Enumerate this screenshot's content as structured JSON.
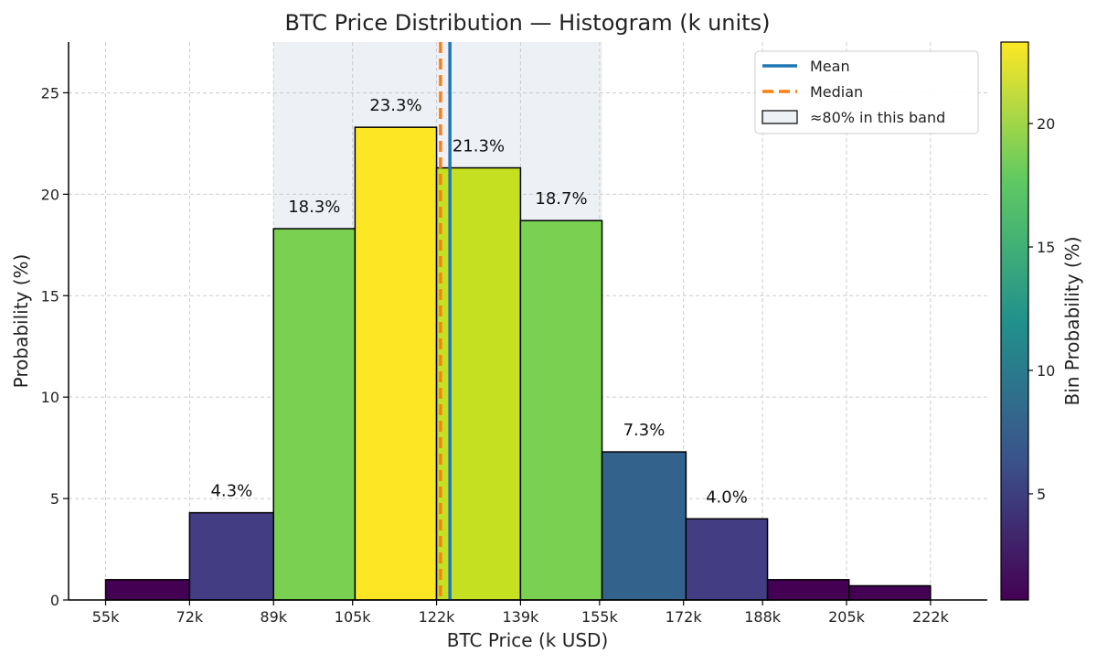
{
  "chart_data": {
    "type": "bar",
    "title": "BTC Price Distribution — Histogram (k units)",
    "xlabel": "BTC Price (k USD)",
    "ylabel": "Probability (%)",
    "ylim": [
      0,
      27.5
    ],
    "yticks": [
      0,
      5,
      10,
      15,
      20,
      25
    ],
    "xlim": [
      47.5,
      233.5
    ],
    "xticks": [
      55,
      72,
      89,
      105,
      122,
      139,
      155,
      172,
      188,
      205,
      222
    ],
    "xtick_labels": [
      "55k",
      "72k",
      "89k",
      "105k",
      "122k",
      "139k",
      "155k",
      "172k",
      "188k",
      "205k",
      "222k"
    ],
    "grid": true,
    "bin_edges": [
      55,
      72,
      89,
      105.5,
      122,
      139,
      155.5,
      172.5,
      189,
      205.5,
      222
    ],
    "values": [
      1.0,
      4.3,
      18.3,
      23.3,
      21.3,
      18.7,
      7.3,
      4.0,
      1.0,
      0.7
    ],
    "bar_labels": [
      "",
      "4.3%",
      "18.3%",
      "23.3%",
      "21.3%",
      "18.7%",
      "7.3%",
      "4.0%",
      "",
      ""
    ],
    "bar_colors": [
      "#440154",
      "#433d84",
      "#7ad151",
      "#fde725",
      "#c5e021",
      "#7ad151",
      "#33638d",
      "#433d84",
      "#440154",
      "#440154"
    ],
    "mean": 124.7,
    "median": 122.8,
    "mean_color": "#1f77b4",
    "median_color": "#ff7f0e",
    "band": [
      89,
      155.5
    ],
    "band_color": "#edf0f5",
    "legend": {
      "position": "top-right",
      "entries": [
        "Mean",
        "Median",
        "≈80% in this band"
      ]
    },
    "colorbar": {
      "label": "Bin Probability (%)",
      "min": 0.7,
      "max": 23.3,
      "ticks": [
        5,
        10,
        15,
        20
      ],
      "stops": [
        "#440154",
        "#3b528b",
        "#21918c",
        "#5ec962",
        "#fde725"
      ]
    }
  }
}
